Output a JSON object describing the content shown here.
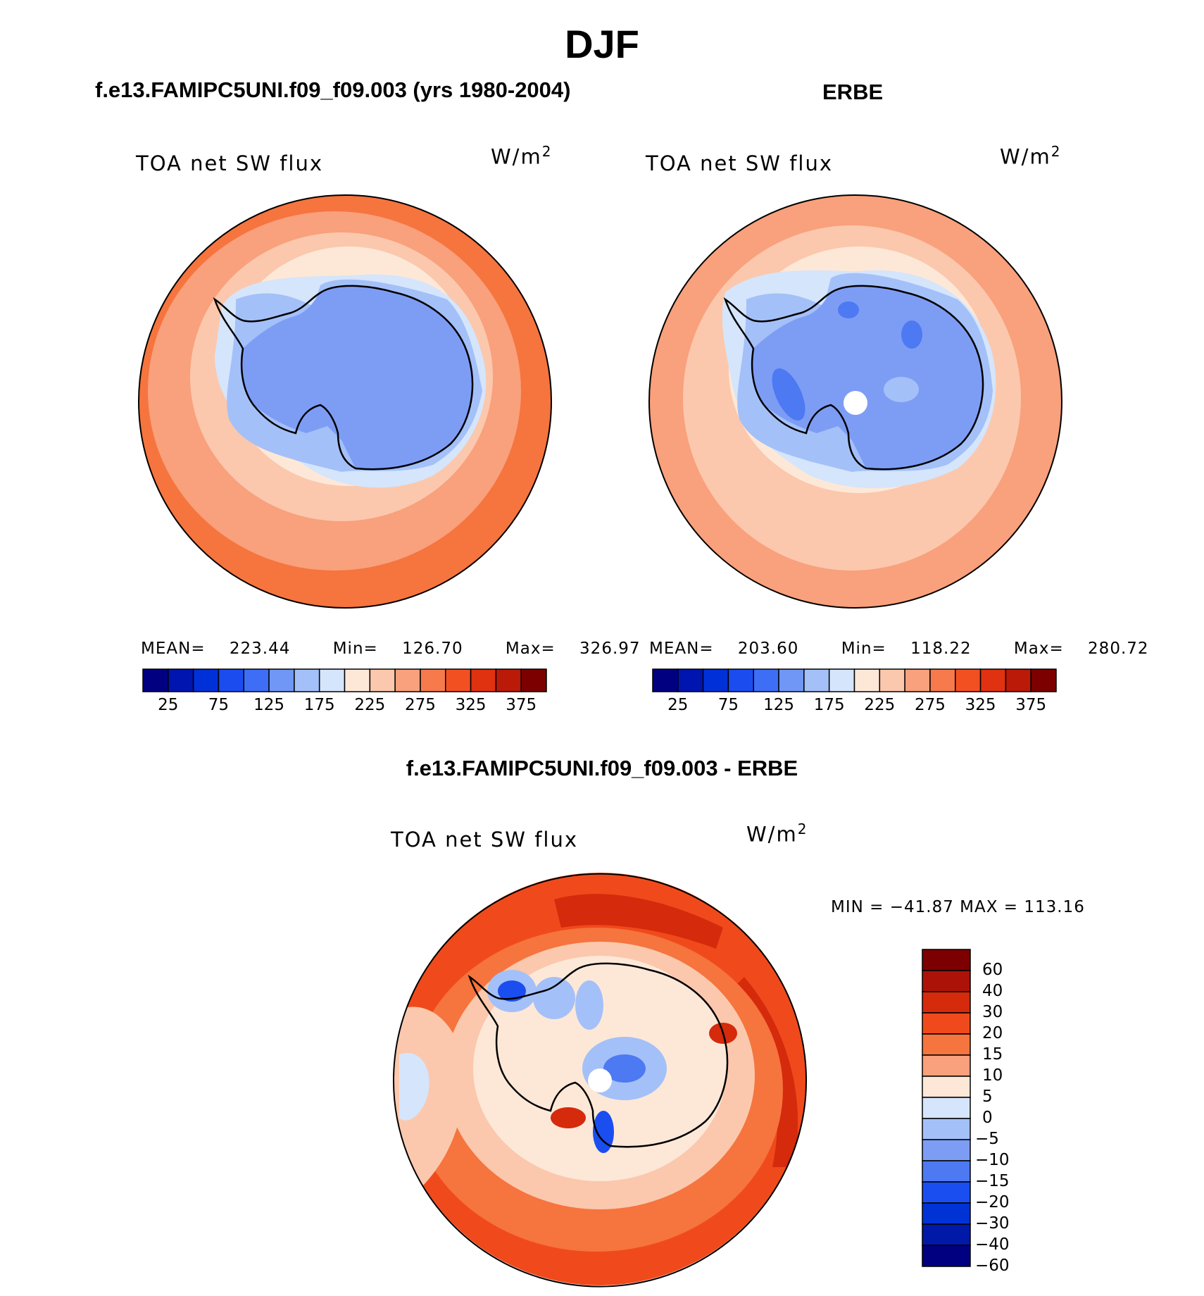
{
  "figure": {
    "title": "DJF"
  },
  "panels": [
    {
      "id": "model",
      "title": "f.e13.FAMIPC5UNI.f09_f09.003 (yrs 1980-2004)",
      "variable": "TOA net SW flux",
      "units_base": "W/m",
      "units_exp": "2",
      "stats": {
        "mean_label": "MEAN=",
        "mean": "223.44",
        "min_label": "Min=",
        "min": "126.70",
        "max_label": "Max=",
        "max": "326.97"
      }
    },
    {
      "id": "obs",
      "title": "ERBE",
      "variable": "TOA net SW flux",
      "units_base": "W/m",
      "units_exp": "2",
      "stats": {
        "mean_label": "MEAN=",
        "mean": "203.60",
        "min_label": "Min=",
        "min": "118.22",
        "max_label": "Max=",
        "max": "280.72"
      }
    },
    {
      "id": "diff",
      "title": "f.e13.FAMIPC5UNI.f09_f09.003 - ERBE",
      "variable": "TOA net SW flux",
      "units_base": "W/m",
      "units_exp": "2",
      "minmax": "MIN = −41.87 MAX = 113.16"
    }
  ],
  "colorbar_abs": {
    "colors": [
      "#000080",
      "#0015b0",
      "#0030d8",
      "#1a4cf0",
      "#3d6ef5",
      "#7097f5",
      "#a4c0f8",
      "#d5e5fb",
      "#fde8d8",
      "#fbc8ad",
      "#f9a07c",
      "#f67a4c",
      "#f35022",
      "#e03210",
      "#bb1a08",
      "#7d0000"
    ],
    "labels": [
      "25",
      "75",
      "125",
      "175",
      "225",
      "275",
      "325",
      "375"
    ]
  },
  "colorbar_diff": {
    "colors": [
      "#7d0000",
      "#ad1208",
      "#d52a0c",
      "#f04a1c",
      "#f6743e",
      "#f9a07c",
      "#fde8d8",
      "#d5e5fb",
      "#a4c0f8",
      "#7d9df5",
      "#4d79f2",
      "#1a4ef0",
      "#0033d6",
      "#0019a8",
      "#000080"
    ],
    "labels": [
      "60",
      "40",
      "30",
      "20",
      "15",
      "10",
      "5",
      "0",
      "−5",
      "−10",
      "−15",
      "−20",
      "−30",
      "−40",
      "−60"
    ]
  },
  "map_colors": {
    "ocean_outer": "#f6743e",
    "ocean_mid": "#f9a07c",
    "ocean_inner": "#fbc8ad",
    "ice_edge": "#fde8d8",
    "ice": "#d5e5fb",
    "land_light": "#a4c0f8",
    "land": "#7d9df5",
    "land_dark": "#4d79f2",
    "diff_outer": "#f04a1c",
    "diff_dark": "#d52a0c",
    "diff_mid": "#f6743e",
    "diff_pale": "#fbc8ad",
    "diff_blue": "#1a4ef0"
  }
}
